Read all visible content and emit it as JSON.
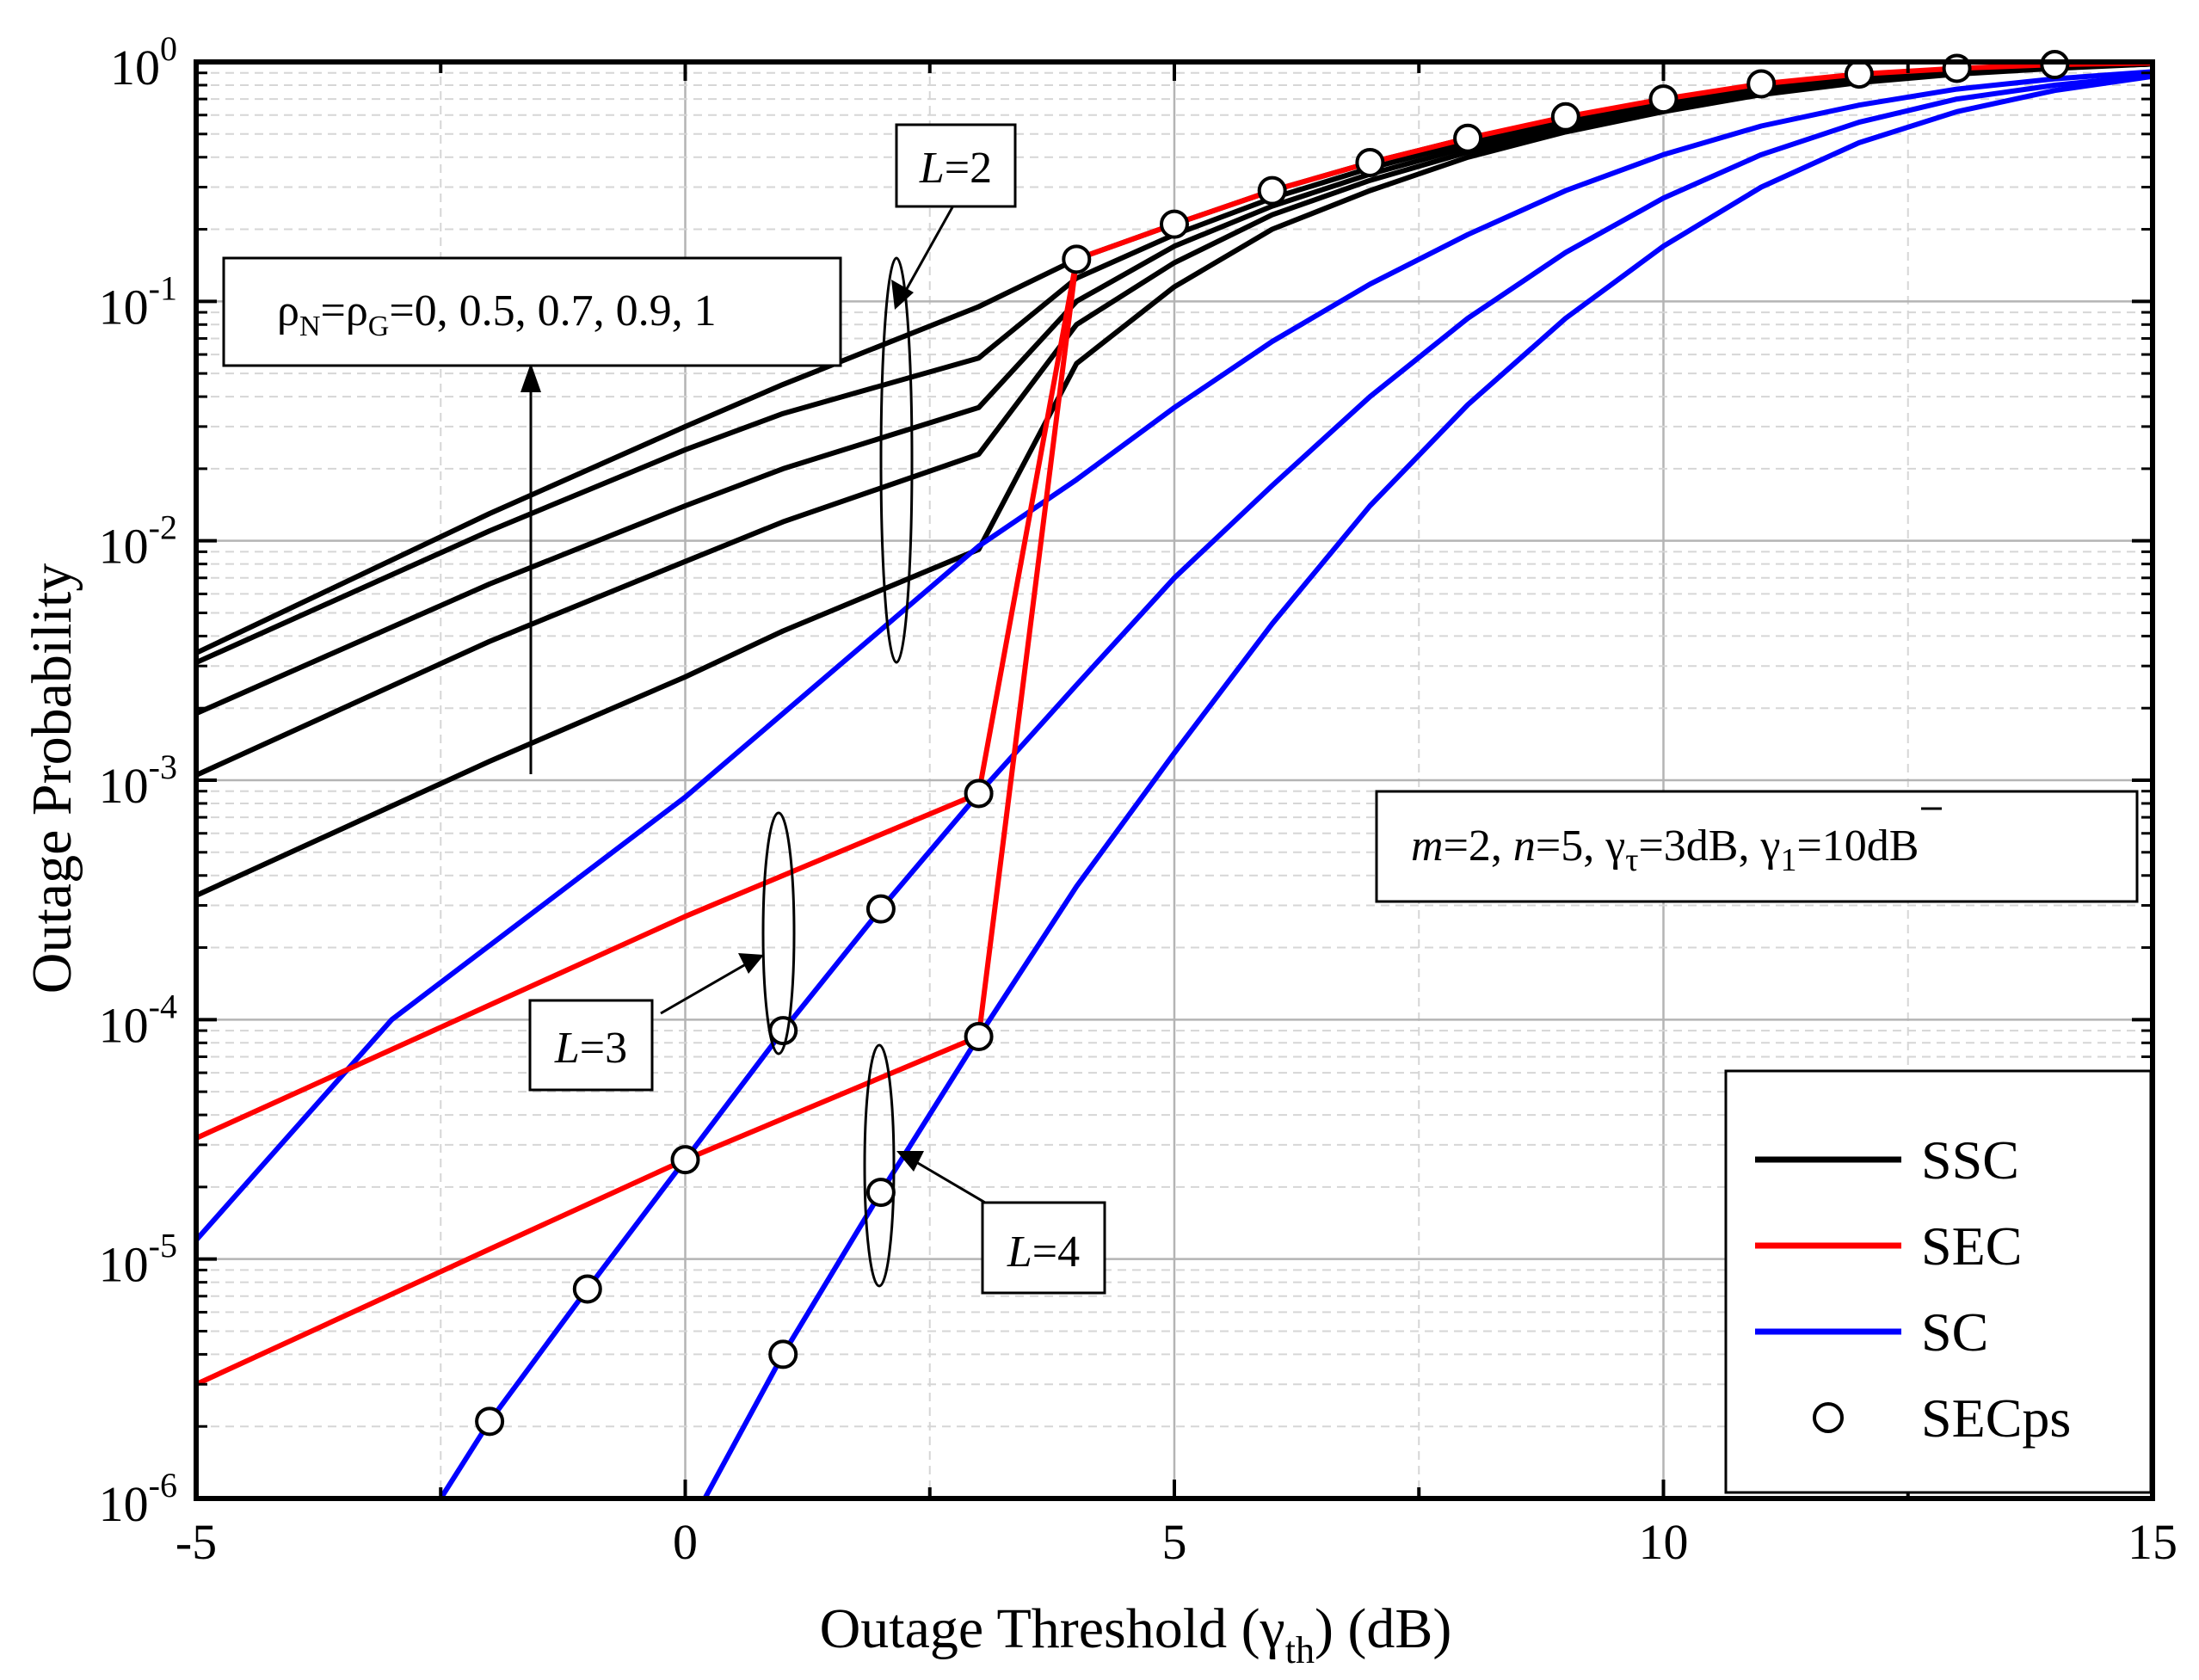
{
  "chart_data": {
    "type": "line",
    "yscale": "log",
    "xlim": [
      -5,
      15
    ],
    "ylim": [
      1e-06,
      1
    ],
    "grid": true,
    "legend_position": "bottom-right",
    "xlabel": {
      "main": "Outage Threshold (",
      "sym": "γ",
      "sub": "th",
      "tail": ") (dB)"
    },
    "ylabel": "Outage Probability",
    "x_ticks": [
      {
        "v": -5,
        "label": "-5"
      },
      {
        "v": 0,
        "label": "0"
      },
      {
        "v": 5,
        "label": "5"
      },
      {
        "v": 10,
        "label": "10"
      },
      {
        "v": 15,
        "label": "15"
      }
    ],
    "y_ticks": [
      {
        "v": 1,
        "base": "10",
        "exp": "0"
      },
      {
        "v": 0.1,
        "base": "10",
        "exp": "-1"
      },
      {
        "v": 0.01,
        "base": "10",
        "exp": "-2"
      },
      {
        "v": 0.001,
        "base": "10",
        "exp": "-3"
      },
      {
        "v": 0.0001,
        "base": "10",
        "exp": "-4"
      },
      {
        "v": 1e-05,
        "base": "10",
        "exp": "-5"
      },
      {
        "v": 1e-06,
        "base": "10",
        "exp": "-6"
      }
    ],
    "colors": {
      "SSC": "#000000",
      "SEC": "#ff0000",
      "SC": "#0000ff",
      "SECps": "#000000"
    },
    "legend": [
      {
        "key": "SSC",
        "label": "SSC",
        "kind": "line"
      },
      {
        "key": "SEC",
        "label": "SEC",
        "kind": "line"
      },
      {
        "key": "SC",
        "label": "SC",
        "kind": "line"
      },
      {
        "key": "SECps",
        "label": "SECps",
        "kind": "marker"
      }
    ],
    "series": [
      {
        "name": "SSC ρ=1, L=2",
        "group": "SSC",
        "x": [
          -5,
          -2,
          0,
          1,
          3,
          4,
          5,
          6,
          7,
          8,
          9,
          10,
          11,
          12,
          13,
          14,
          15
        ],
        "y": [
          0.0034,
          0.013,
          0.03,
          0.045,
          0.095,
          0.15,
          0.21,
          0.29,
          0.38,
          0.48,
          0.58,
          0.68,
          0.78,
          0.86,
          0.92,
          0.96,
          0.98
        ]
      },
      {
        "name": "SSC ρ=0.9, L=2",
        "group": "SSC",
        "x": [
          -5,
          -2,
          0,
          1,
          3,
          4,
          5,
          6,
          7,
          8,
          9,
          10,
          11,
          12,
          13,
          14,
          15
        ],
        "y": [
          0.0031,
          0.011,
          0.024,
          0.034,
          0.058,
          0.125,
          0.19,
          0.27,
          0.36,
          0.46,
          0.56,
          0.66,
          0.76,
          0.84,
          0.91,
          0.95,
          0.98
        ]
      },
      {
        "name": "SSC ρ=0.7, L=2",
        "group": "SSC",
        "x": [
          -5,
          -2,
          0,
          1,
          3,
          4,
          5,
          6,
          7,
          8,
          9,
          10,
          11,
          12,
          13,
          14,
          15
        ],
        "y": [
          0.0019,
          0.0066,
          0.014,
          0.02,
          0.036,
          0.1,
          0.17,
          0.25,
          0.34,
          0.44,
          0.55,
          0.65,
          0.75,
          0.84,
          0.9,
          0.95,
          0.98
        ]
      },
      {
        "name": "SSC ρ=0.5, L=2",
        "group": "SSC",
        "x": [
          -5,
          -2,
          0,
          1,
          3,
          4,
          5,
          6,
          7,
          8,
          9,
          10,
          11,
          12,
          13,
          14,
          15
        ],
        "y": [
          0.00105,
          0.0038,
          0.0082,
          0.012,
          0.023,
          0.08,
          0.145,
          0.23,
          0.32,
          0.42,
          0.53,
          0.64,
          0.74,
          0.83,
          0.9,
          0.95,
          0.98
        ]
      },
      {
        "name": "SSC ρ=0, L=2",
        "group": "SSC",
        "x": [
          -5,
          -2,
          0,
          1,
          3,
          4,
          5,
          6,
          7,
          8,
          9,
          10,
          11,
          12,
          13,
          14,
          15
        ],
        "y": [
          0.00033,
          0.0012,
          0.0027,
          0.0042,
          0.0092,
          0.055,
          0.115,
          0.2,
          0.29,
          0.4,
          0.51,
          0.62,
          0.73,
          0.82,
          0.89,
          0.94,
          0.98
        ]
      },
      {
        "name": "SEC L=2",
        "group": "SEC",
        "x": [
          4,
          5,
          6,
          7,
          8,
          9,
          10,
          11,
          12,
          13,
          14,
          15
        ],
        "y": [
          0.15,
          0.21,
          0.29,
          0.38,
          0.48,
          0.59,
          0.7,
          0.81,
          0.89,
          0.94,
          0.975,
          0.99
        ]
      },
      {
        "name": "SEC L=3",
        "group": "SEC",
        "x": [
          -5,
          -2,
          0,
          3,
          4
        ],
        "y": [
          3.2e-05,
          0.000115,
          0.00027,
          0.00088,
          0.15
        ]
      },
      {
        "name": "SEC L=4",
        "group": "SEC",
        "x": [
          -5,
          -2,
          0,
          3,
          4
        ],
        "y": [
          3e-06,
          1.1e-05,
          2.6e-05,
          8.5e-05,
          0.15
        ]
      },
      {
        "name": "SC L=2",
        "group": "SC",
        "x": [
          -5,
          -3,
          0,
          3,
          4,
          5,
          6,
          7,
          8,
          9,
          10,
          11,
          12,
          13,
          14,
          15
        ],
        "y": [
          1.2e-05,
          0.0001,
          0.00085,
          0.0095,
          0.018,
          0.036,
          0.068,
          0.118,
          0.19,
          0.29,
          0.41,
          0.54,
          0.66,
          0.77,
          0.85,
          0.91
        ]
      },
      {
        "name": "SC L=3",
        "group": "SC",
        "x": [
          -2.5,
          -2,
          -1,
          0,
          1,
          2,
          3,
          4,
          5,
          6,
          7,
          8,
          9,
          10,
          11,
          12,
          13,
          14,
          15
        ],
        "y": [
          1e-06,
          2.1e-06,
          7.5e-06,
          2.6e-05,
          9e-05,
          0.00029,
          0.00088,
          0.0025,
          0.007,
          0.017,
          0.04,
          0.085,
          0.16,
          0.27,
          0.41,
          0.56,
          0.7,
          0.8,
          0.88
        ]
      },
      {
        "name": "SC L=4",
        "group": "SC",
        "x": [
          0.2,
          1,
          2,
          3,
          4,
          5,
          6,
          7,
          8,
          9,
          10,
          11,
          12,
          13,
          14,
          15
        ],
        "y": [
          1e-06,
          4e-06,
          1.9e-05,
          8.5e-05,
          0.00036,
          0.0013,
          0.0045,
          0.014,
          0.037,
          0.085,
          0.17,
          0.3,
          0.46,
          0.62,
          0.76,
          0.87
        ]
      }
    ],
    "markers": {
      "name": "SECps",
      "x": [
        4,
        5,
        6,
        7,
        8,
        9,
        10,
        11,
        12,
        13,
        14,
        3,
        2,
        1,
        0,
        -1,
        -2,
        3,
        2,
        1
      ],
      "y": [
        0.15,
        0.21,
        0.29,
        0.38,
        0.48,
        0.59,
        0.7,
        0.81,
        0.89,
        0.94,
        0.975,
        0.00088,
        0.00029,
        9e-05,
        2.6e-05,
        7.5e-06,
        2.1e-06,
        8.5e-05,
        1.9e-05,
        4e-06
      ]
    },
    "annotations": {
      "L2": {
        "italic": "L",
        "rest": "=2"
      },
      "L3": {
        "italic": "L",
        "rest": "=3"
      },
      "L4": {
        "italic": "L",
        "rest": "=4"
      },
      "rho": {
        "rho": "ρ",
        "subN": "N",
        "eq": "=",
        "subG": "G",
        "values": "=0, 0.5, 0.7, 0.9, 1"
      },
      "params": {
        "m": "m",
        "m_val": "=2, ",
        "n": "n",
        "n_val": "=5, ",
        "gamma": "γ",
        "tau": "τ",
        "tau_val": "=3dB, ",
        "gamma_bar": "γ",
        "one": "1",
        "bar_val": "=10dB"
      }
    }
  }
}
